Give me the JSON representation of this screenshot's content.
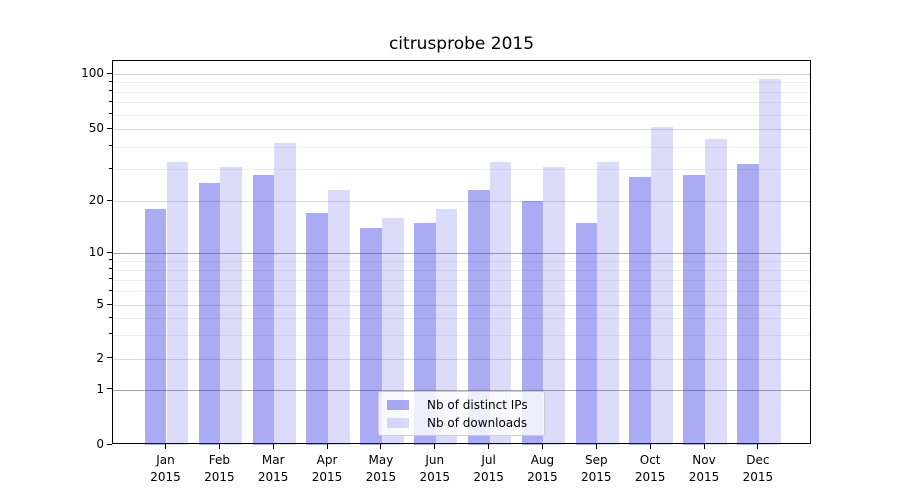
{
  "title": "citrusprobe 2015",
  "chart_data": {
    "type": "bar",
    "title": "citrusprobe 2015",
    "categories": [
      "Jan 2015",
      "Feb 2015",
      "Mar 2015",
      "Apr 2015",
      "May 2015",
      "Jun 2015",
      "Jul 2015",
      "Aug 2015",
      "Sep 2015",
      "Oct 2015",
      "Nov 2015",
      "Dec 2015"
    ],
    "series": [
      {
        "name": "Nb of distinct IPs",
        "color": "rgba(45,45,225,0.40)",
        "values": [
          18,
          25,
          28,
          17,
          14,
          15,
          23,
          20,
          15,
          27,
          28,
          32
        ]
      },
      {
        "name": "Nb of downloads",
        "color": "rgba(45,45,225,0.17)",
        "values": [
          33,
          31,
          42,
          23,
          16,
          18,
          33,
          31,
          33,
          51,
          44,
          94
        ]
      }
    ],
    "yscale": "symlog",
    "yticks": [
      0,
      1,
      2,
      5,
      10,
      20,
      50,
      100
    ],
    "yminorticks": [
      3,
      4,
      6,
      7,
      8,
      9,
      30,
      40,
      60,
      70,
      80,
      90
    ],
    "ylim": [
      0,
      110
    ],
    "grid": true,
    "legend_position": "lower center"
  }
}
